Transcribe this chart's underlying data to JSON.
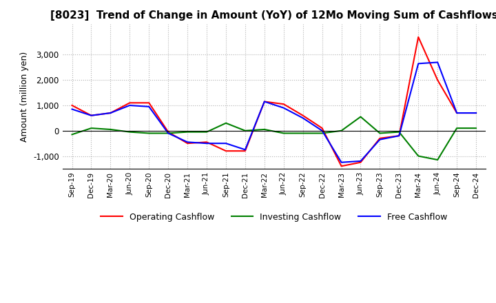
{
  "title": "[8023]  Trend of Change in Amount (YoY) of 12Mo Moving Sum of Cashflows",
  "ylabel": "Amount (million yen)",
  "x_labels": [
    "Sep-19",
    "Dec-19",
    "Mar-20",
    "Jun-20",
    "Sep-20",
    "Dec-20",
    "Mar-21",
    "Jun-21",
    "Sep-21",
    "Dec-21",
    "Mar-22",
    "Jun-22",
    "Sep-22",
    "Dec-22",
    "Mar-23",
    "Jun-23",
    "Sep-23",
    "Dec-23",
    "Mar-24",
    "Jun-24",
    "Sep-24",
    "Dec-24"
  ],
  "operating": [
    1000,
    600,
    700,
    1100,
    1100,
    -50,
    -500,
    -450,
    -800,
    -800,
    1150,
    1050,
    600,
    100,
    -1400,
    -1250,
    -300,
    -200,
    3700,
    2000,
    700,
    700
  ],
  "investing": [
    -150,
    100,
    50,
    -50,
    -100,
    -100,
    -50,
    -50,
    300,
    0,
    50,
    -100,
    -100,
    -100,
    0,
    550,
    -100,
    -50,
    -1000,
    -1150,
    100,
    100
  ],
  "free": [
    850,
    600,
    700,
    1000,
    950,
    -100,
    -450,
    -500,
    -500,
    -750,
    1150,
    900,
    500,
    0,
    -1250,
    -1200,
    -350,
    -200,
    2650,
    2700,
    700,
    700
  ],
  "operating_color": "#ff0000",
  "investing_color": "#008000",
  "free_color": "#0000ff",
  "ylim": [
    -1500,
    4200
  ],
  "yticks": [
    -1000,
    0,
    1000,
    2000,
    3000
  ],
  "background_color": "#ffffff",
  "grid_color": "#b0b0b0",
  "title_fontsize": 11,
  "label_fontsize": 9
}
